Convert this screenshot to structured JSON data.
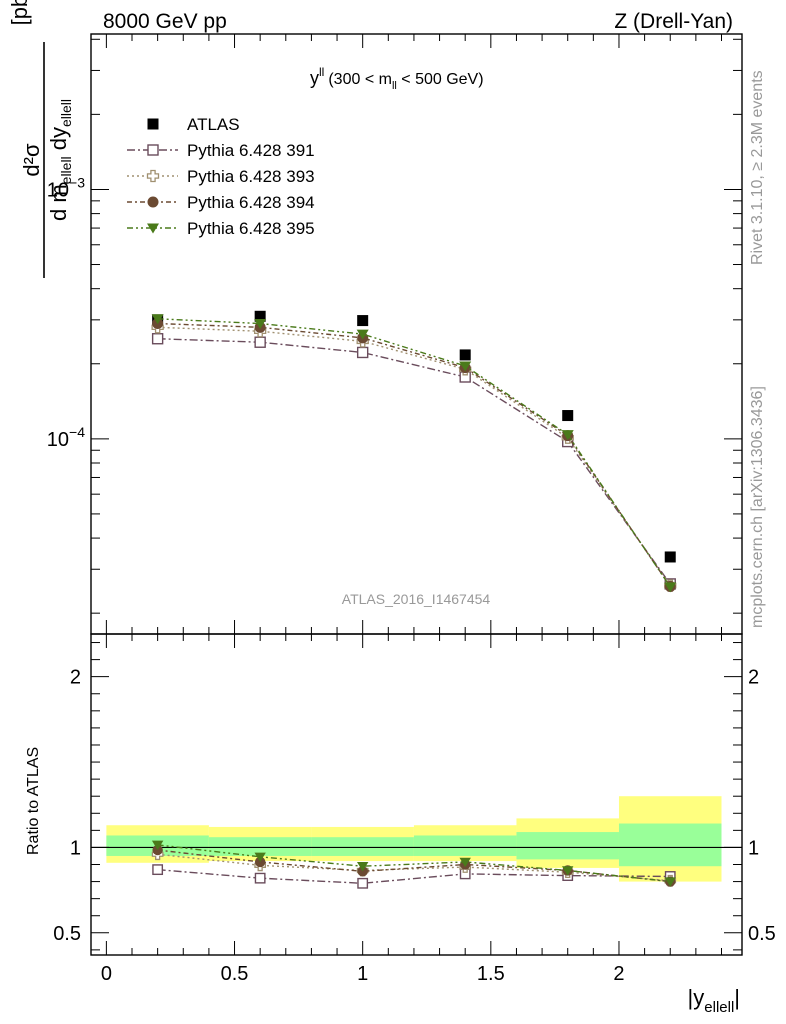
{
  "header": {
    "left": "8000 GeV pp",
    "right": "Z (Drell-Yan)"
  },
  "side_labels": {
    "rivet": "Rivet 3.1.10, ≥ 2.3M events",
    "mcplots": "mcplots.cern.ch [arXiv:1306.3436]"
  },
  "watermark": "ATLAS_2016_I1467454",
  "chart_data": [
    {
      "type": "scatter",
      "title": {
        "main": "y",
        "sup": "ll",
        "range_pre": "(300 < m",
        "range_sub": "ll",
        "range_post": " < 500 GeV)"
      },
      "ylabel": {
        "num": "d²σ",
        "den_pre": "d m",
        "den_sub1": "ellell",
        "den_mid": " dy",
        "den_sub2": "ellell",
        "unit": "[pb/GeV]"
      },
      "yscale": "log",
      "ylim": [
        1.65e-05,
        0.0042
      ],
      "xlim": [
        -0.06,
        2.48
      ],
      "yticks": [
        {
          "value": 0.0001,
          "base": "10",
          "exp": "−4"
        },
        {
          "value": 0.001,
          "base": "10",
          "exp": "−3"
        }
      ],
      "legend_position": "top-left",
      "legend": [
        "ATLAS",
        "Pythia 6.428 391",
        "Pythia 6.428 393",
        "Pythia 6.428 394",
        "Pythia 6.428 395"
      ],
      "x": [
        0.2,
        0.6,
        1.0,
        1.4,
        1.8,
        2.2
      ],
      "x_bins": [
        [
          0.0,
          0.4
        ],
        [
          0.4,
          0.8
        ],
        [
          0.8,
          1.2
        ],
        [
          1.2,
          1.6
        ],
        [
          1.6,
          2.0
        ],
        [
          2.0,
          2.4
        ]
      ],
      "series": [
        {
          "name": "ATLAS",
          "color": "#000000",
          "marker": "filled-square",
          "values": [
            0.0003,
            0.00031,
            0.000298,
            0.000217,
            0.000124,
            3.36e-05
          ]
        },
        {
          "name": "Pythia 6.428 391",
          "color": "#6a4c5c",
          "marker": "open-square",
          "dash": "8,3,2,3",
          "values": [
            0.000252,
            0.000244,
            0.000222,
            0.000177,
            9.75e-05,
            2.62e-05
          ]
        },
        {
          "name": "Pythia 6.428 393",
          "color": "#a09070",
          "marker": "open-cross",
          "dash": "2,3",
          "values": [
            0.00028,
            0.00027,
            0.000246,
            0.00019,
            0.000101,
            2.58e-05
          ]
        },
        {
          "name": "Pythia 6.428 394",
          "color": "#6b4a32",
          "marker": "filled-circle",
          "dash": "5,3,2,3",
          "values": [
            0.00029,
            0.00028,
            0.000254,
            0.000193,
            0.000103,
            2.56e-05
          ]
        },
        {
          "name": "Pythia 6.428 395",
          "color": "#4a7a1a",
          "marker": "filled-triangle-down",
          "dash": "6,3,2,3,2,3",
          "values": [
            0.000303,
            0.00029,
            0.000263,
            0.000196,
            0.000104,
            2.55e-05
          ]
        }
      ]
    },
    {
      "type": "scatter",
      "ylabel": "Ratio to ATLAS",
      "xlabel": {
        "pre": "|y",
        "sub": "ellell",
        "post": "|"
      },
      "ylim": [
        0.37,
        2.25
      ],
      "xlim": [
        -0.06,
        2.48
      ],
      "yticks": [
        "0.5",
        "1",
        "2"
      ],
      "xticks": [
        "0",
        "0.5",
        "1",
        "1.5",
        "2"
      ],
      "x": [
        0.2,
        0.6,
        1.0,
        1.4,
        1.8,
        2.2
      ],
      "bands": {
        "x_bins": [
          [
            0.0,
            0.4
          ],
          [
            0.4,
            0.8
          ],
          [
            0.8,
            1.2
          ],
          [
            1.2,
            1.6
          ],
          [
            1.6,
            2.0
          ],
          [
            2.0,
            2.4
          ]
        ],
        "outer": {
          "color": "#ffff7f",
          "lo": [
            0.91,
            0.92,
            0.92,
            0.92,
            0.88,
            0.8
          ],
          "hi": [
            1.13,
            1.12,
            1.12,
            1.13,
            1.17,
            1.3
          ]
        },
        "inner": {
          "color": "#99ff99",
          "lo": [
            0.95,
            0.95,
            0.95,
            0.95,
            0.93,
            0.89
          ],
          "hi": [
            1.07,
            1.06,
            1.06,
            1.07,
            1.09,
            1.14
          ]
        }
      },
      "series": [
        {
          "name": "Pythia 6.428 391",
          "values": [
            0.87,
            0.82,
            0.79,
            0.845,
            0.835,
            0.83
          ]
        },
        {
          "name": "Pythia 6.428 393",
          "values": [
            0.96,
            0.895,
            0.865,
            0.885,
            0.855,
            0.805
          ]
        },
        {
          "name": "Pythia 6.428 394",
          "values": [
            0.985,
            0.915,
            0.86,
            0.9,
            0.865,
            0.8
          ]
        },
        {
          "name": "Pythia 6.428 395",
          "values": [
            1.015,
            0.945,
            0.89,
            0.915,
            0.865,
            0.8
          ]
        }
      ]
    }
  ]
}
